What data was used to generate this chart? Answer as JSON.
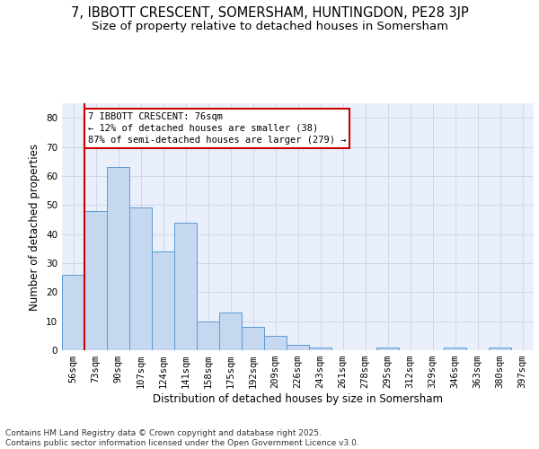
{
  "title_line1": "7, IBBOTT CRESCENT, SOMERSHAM, HUNTINGDON, PE28 3JP",
  "title_line2": "Size of property relative to detached houses in Somersham",
  "xlabel": "Distribution of detached houses by size in Somersham",
  "ylabel": "Number of detached properties",
  "categories": [
    "56sqm",
    "73sqm",
    "90sqm",
    "107sqm",
    "124sqm",
    "141sqm",
    "158sqm",
    "175sqm",
    "192sqm",
    "209sqm",
    "226sqm",
    "243sqm",
    "261sqm",
    "278sqm",
    "295sqm",
    "312sqm",
    "329sqm",
    "346sqm",
    "363sqm",
    "380sqm",
    "397sqm"
  ],
  "values": [
    26,
    48,
    63,
    49,
    34,
    44,
    10,
    13,
    8,
    5,
    2,
    1,
    0,
    0,
    1,
    0,
    0,
    1,
    0,
    1,
    0
  ],
  "bar_color": "#c5d8f0",
  "bar_edge_color": "#5b9bd5",
  "grid_color": "#d0d8e8",
  "background_color": "#eaf0fb",
  "annotation_line1": "7 IBBOTT CRESCENT: 76sqm",
  "annotation_line2": "← 12% of detached houses are smaller (38)",
  "annotation_line3": "87% of semi-detached houses are larger (279) →",
  "annotation_box_edge_color": "#cc0000",
  "vline_color": "#cc0000",
  "vline_x_index": 1,
  "ylim": [
    0,
    85
  ],
  "yticks": [
    0,
    10,
    20,
    30,
    40,
    50,
    60,
    70,
    80
  ],
  "footer_text": "Contains HM Land Registry data © Crown copyright and database right 2025.\nContains public sector information licensed under the Open Government Licence v3.0.",
  "title_fontsize": 10.5,
  "subtitle_fontsize": 9.5,
  "axis_label_fontsize": 8.5,
  "tick_fontsize": 7.5,
  "annotation_fontsize": 7.5,
  "footer_fontsize": 6.5
}
